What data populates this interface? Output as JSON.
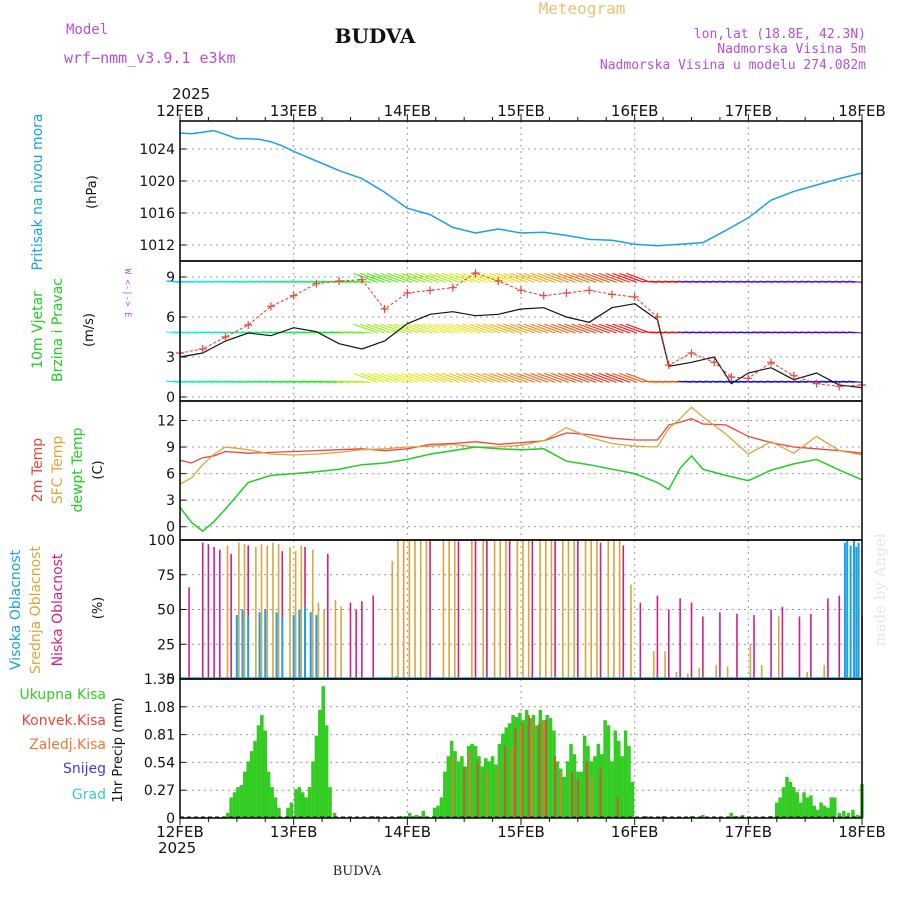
{
  "header": {
    "model_label": "Model",
    "model_name": "wrf−nmm_v3.9.1  e3km",
    "station": "BUDVA",
    "chart_title": "Meteogram",
    "coords": "lon,lat (18.8E, 42.3N)",
    "elevation": "Nadmorska Visina 5m",
    "model_elevation": "Nadmorska Visina u modelu 274.082m",
    "year_top": "2025",
    "year_bottom": "2025",
    "footer_station": "BUDVA",
    "watermark": "made by Angel"
  },
  "colors": {
    "pressure": "#1aa0e6",
    "temp2m": "#e8453c",
    "sfc_temp": "#dba53a",
    "dewpt": "#22cc22",
    "high_cloud": "#1aa0e6",
    "mid_cloud": "#dba53a",
    "low_cloud": "#cc1f8a",
    "wind_label": "#22cc22",
    "model_text": "#b44fd6",
    "meteogram_text": "#e8c274",
    "precip_total": "#33cc22",
    "precip_conv": "#e8453c",
    "precip_ice": "#ee7733",
    "precip_snow": "#3c3cdd",
    "precip_graupel": "#33cccc"
  },
  "chart_data": [
    {
      "type": "line",
      "id": "pressure",
      "ylabel_left": "Pritisak na nivou mora",
      "unit": "(hPa)",
      "ylim": [
        1010,
        1027.5
      ],
      "yticks": [
        "1012",
        "1016",
        "1020",
        "1024"
      ],
      "x_days": [
        0,
        0.1,
        0.2,
        0.3,
        0.4,
        0.5,
        0.6,
        0.7,
        0.8,
        0.9,
        1,
        1.2,
        1.4,
        1.6,
        1.8,
        2,
        2.2,
        2.4,
        2.6,
        2.8,
        3,
        3.2,
        3.4,
        3.6,
        3.8,
        4,
        4.2,
        4.4,
        4.6,
        4.8,
        5,
        5.2,
        5.4,
        5.6,
        5.8,
        6
      ],
      "values": [
        1026,
        1025.9,
        1026.1,
        1026.3,
        1025.8,
        1025.3,
        1025.3,
        1025.2,
        1024.9,
        1024.4,
        1023.7,
        1022.5,
        1021.3,
        1020.3,
        1018.6,
        1016.6,
        1015.8,
        1014.2,
        1013.5,
        1014.0,
        1013.5,
        1013.6,
        1013.2,
        1012.7,
        1012.6,
        1012.1,
        1011.9,
        1012.1,
        1012.3,
        1013.8,
        1015.4,
        1017.6,
        1018.7,
        1019.5,
        1020.3,
        1021.0
      ]
    },
    {
      "type": "line",
      "id": "wind",
      "ylabel_left": "10m Vjetar",
      "ylabel_left2": "Brzina i Pravac",
      "unit": "(m/s)",
      "compass_note": "W <-|-> E",
      "ylim": [
        -0.3,
        10.2
      ],
      "yticks": [
        "0",
        "3",
        "6",
        "9"
      ],
      "speed_x_days": [
        0,
        0.2,
        0.4,
        0.6,
        0.8,
        1,
        1.2,
        1.4,
        1.6,
        1.8,
        2,
        2.2,
        2.4,
        2.6,
        2.8,
        3,
        3.2,
        3.4,
        3.6,
        3.8,
        4,
        4.2,
        4.3,
        4.5,
        4.7,
        4.85,
        5,
        5.2,
        5.4,
        5.6,
        5.8,
        6
      ],
      "speed_values": [
        3.0,
        3.3,
        4.2,
        4.8,
        4.6,
        5.2,
        4.9,
        4.0,
        3.6,
        4.2,
        5.5,
        6.2,
        6.4,
        6.1,
        6.2,
        6.6,
        6.7,
        6.0,
        5.6,
        6.7,
        7.0,
        5.8,
        2.3,
        2.6,
        3.0,
        1.0,
        1.8,
        2.2,
        1.3,
        1.8,
        0.9,
        0.7
      ],
      "gust_x_days": [
        0,
        0.2,
        0.4,
        0.6,
        0.8,
        1,
        1.2,
        1.4,
        1.6,
        1.8,
        2,
        2.2,
        2.4,
        2.6,
        2.8,
        3,
        3.2,
        3.4,
        3.6,
        3.8,
        4,
        4.2,
        4.3,
        4.5,
        4.7,
        4.85,
        5,
        5.2,
        5.4,
        5.6,
        5.8,
        6
      ],
      "gust_values": [
        3.3,
        3.6,
        4.5,
        5.4,
        6.8,
        7.6,
        8.5,
        8.7,
        8.8,
        6.6,
        7.8,
        8.0,
        8.2,
        9.3,
        8.7,
        8.0,
        7.6,
        7.8,
        8.0,
        7.7,
        7.5,
        6.0,
        2.4,
        3.3,
        2.6,
        1.5,
        1.4,
        2.6,
        1.6,
        1.0,
        0.8,
        0.9
      ]
    },
    {
      "type": "line",
      "id": "temperature",
      "ylabel_left": "2m Temp",
      "ylabel_left2": "SFC Temp",
      "ylabel_left3": "dewpt Temp",
      "unit": "(C)",
      "ylim": [
        -1.5,
        14.2
      ],
      "yticks": [
        "0",
        "3",
        "6",
        "9",
        "12"
      ],
      "x_days": [
        0,
        0.1,
        0.2,
        0.3,
        0.4,
        0.6,
        0.8,
        1,
        1.2,
        1.4,
        1.6,
        1.8,
        2,
        2.2,
        2.4,
        2.6,
        2.8,
        3,
        3.2,
        3.4,
        3.6,
        3.8,
        4,
        4.2,
        4.3,
        4.4,
        4.5,
        4.6,
        4.8,
        5,
        5.2,
        5.4,
        5.6,
        5.8,
        6
      ],
      "t2m": [
        7.5,
        7.2,
        7.8,
        8.0,
        8.5,
        8.3,
        8.4,
        8.5,
        8.6,
        8.7,
        8.8,
        8.6,
        8.8,
        9.3,
        9.4,
        9.6,
        9.3,
        9.5,
        9.7,
        10.6,
        10.4,
        10.0,
        9.8,
        9.8,
        11.5,
        11.8,
        12.2,
        11.6,
        11.5,
        10.2,
        9.5,
        9.0,
        8.8,
        8.6,
        8.3
      ],
      "sfc": [
        4.8,
        5.5,
        7.0,
        8.2,
        9.0,
        8.7,
        8.2,
        8.1,
        8.2,
        8.4,
        8.7,
        8.8,
        9.0,
        9.1,
        9.3,
        9.0,
        9.0,
        9.2,
        9.7,
        11.2,
        10.1,
        9.4,
        9.1,
        9.0,
        11.1,
        12.2,
        13.5,
        12.4,
        10.5,
        8.2,
        9.6,
        8.3,
        10.2,
        8.6,
        8.1
      ],
      "dewpt": [
        2.2,
        0.5,
        -0.5,
        0.6,
        2.0,
        5.0,
        5.8,
        6.0,
        6.2,
        6.5,
        7.0,
        7.2,
        7.6,
        8.2,
        8.6,
        9.0,
        8.8,
        8.7,
        8.8,
        7.4,
        7.0,
        6.5,
        6.0,
        5.0,
        4.2,
        6.6,
        8.0,
        6.5,
        5.8,
        5.2,
        6.4,
        7.1,
        7.6,
        6.4,
        5.3
      ]
    },
    {
      "type": "bar",
      "id": "clouds",
      "ylabel_left": "Visoka Oblacnost",
      "ylabel_left2": "Srednja Oblacnost",
      "ylabel_left3": "Niska Oblacnost",
      "unit": "(%)",
      "ylim": [
        0,
        100
      ],
      "yticks": [
        "0",
        "25",
        "50",
        "75",
        "100"
      ],
      "series": [
        {
          "name": "Niska Oblacnost",
          "x_days": [
            0.08,
            0.2,
            0.25,
            0.3,
            0.35,
            0.45,
            0.6,
            0.9,
            1.1,
            1.3,
            1.5,
            1.55,
            1.6,
            1.7,
            2.2,
            2.45,
            2.6,
            2.7,
            2.9,
            3.1,
            3.3,
            3.5,
            3.7,
            3.9,
            4.05,
            4.2,
            4.3,
            4.4,
            4.5,
            4.6,
            4.75,
            4.9,
            5.05,
            5.2,
            5.3,
            5.45,
            5.55,
            5.7,
            5.8,
            5.9,
            5.95,
            6.0
          ],
          "values": [
            66,
            98,
            97,
            95,
            93,
            90,
            96,
            92,
            95,
            90,
            55,
            50,
            56,
            60,
            100,
            99,
            100,
            100,
            100,
            100,
            100,
            100,
            98,
            96,
            55,
            60,
            50,
            58,
            55,
            45,
            48,
            47,
            46,
            50,
            52,
            45,
            47,
            58,
            60,
            46,
            48,
            45
          ]
        },
        {
          "name": "Srednja Oblacnost",
          "x_days": [
            0.4,
            0.5,
            0.55,
            0.65,
            0.7,
            0.75,
            0.8,
            0.85,
            0.95,
            1.0,
            1.05,
            1.15,
            1.2,
            1.25,
            1.35,
            1.4,
            1.85,
            1.9,
            1.95,
            2.0,
            2.05,
            2.1,
            2.15,
            2.3,
            2.35,
            2.4,
            2.55,
            2.65,
            2.75,
            2.8,
            2.85,
            2.95,
            3.0,
            3.05,
            3.15,
            3.2,
            3.25,
            3.35,
            3.4,
            3.45,
            3.55,
            3.6,
            3.65,
            3.75,
            3.8,
            3.85,
            3.95,
            4.15,
            4.25,
            4.35,
            4.45,
            4.55,
            4.7,
            4.8,
            5.0,
            5.1,
            5.25,
            5.5,
            5.65
          ],
          "values": [
            96,
            98,
            97,
            95,
            97,
            96,
            98,
            97,
            95,
            92,
            96,
            93,
            55,
            50,
            57,
            52,
            85,
            100,
            100,
            100,
            100,
            100,
            100,
            100,
            100,
            100,
            100,
            100,
            100,
            100,
            100,
            100,
            100,
            100,
            100,
            100,
            100,
            100,
            100,
            100,
            100,
            100,
            100,
            100,
            100,
            100,
            68,
            20,
            20,
            5,
            4,
            8,
            10,
            9,
            25,
            10,
            45,
            5,
            10
          ]
        },
        {
          "name": "Visoka Oblacnost",
          "x_days": [
            0.5,
            0.55,
            0.6,
            0.7,
            0.75,
            0.85,
            0.9,
            1.0,
            1.05,
            1.1,
            1.15,
            1.2,
            1.9,
            2.5,
            2.9,
            3.1,
            4.2,
            5.85,
            5.87,
            5.9,
            5.93,
            5.95,
            5.97
          ],
          "values": [
            46,
            50,
            45,
            48,
            50,
            48,
            45,
            46,
            50,
            52,
            48,
            46,
            2,
            1,
            1,
            1,
            2,
            98,
            100,
            96,
            100,
            95,
            98
          ]
        }
      ]
    },
    {
      "type": "bar",
      "id": "precip",
      "ylabel_left": "1hr Precip (mm)",
      "legend": [
        "Ukupna Kisa",
        "Konvek.Kisa",
        "Zaledj.Kisa",
        "Snijeg",
        "Grad"
      ],
      "ylim": [
        0,
        1.35
      ],
      "yticks": [
        "0",
        "0.27",
        "0.54",
        "0.81",
        "1.08",
        "1.35"
      ],
      "series": [
        {
          "name": "Ukupna Kisa",
          "x_days": [
            0.42,
            0.45,
            0.48,
            0.51,
            0.54,
            0.57,
            0.6,
            0.63,
            0.66,
            0.69,
            0.72,
            0.75,
            0.78,
            0.81,
            0.84,
            0.87,
            0.95,
            0.98,
            1.02,
            1.05,
            1.08,
            1.11,
            1.14,
            1.17,
            1.2,
            1.23,
            1.26,
            1.29,
            1.32,
            1.36,
            1.7,
            1.95,
            2.02,
            2.08,
            2.14,
            2.24,
            2.27,
            2.3,
            2.33,
            2.36,
            2.39,
            2.42,
            2.45,
            2.48,
            2.51,
            2.54,
            2.57,
            2.6,
            2.63,
            2.66,
            2.69,
            2.72,
            2.75,
            2.78,
            2.81,
            2.84,
            2.87,
            2.9,
            2.93,
            2.96,
            2.99,
            3.02,
            3.05,
            3.08,
            3.11,
            3.14,
            3.17,
            3.2,
            3.23,
            3.26,
            3.29,
            3.32,
            3.35,
            3.38,
            3.41,
            3.44,
            3.47,
            3.5,
            3.53,
            3.56,
            3.59,
            3.62,
            3.65,
            3.68,
            3.71,
            3.74,
            3.77,
            3.8,
            3.83,
            3.86,
            3.89,
            3.92,
            3.95,
            3.98,
            4.1,
            4.25,
            4.5,
            4.6,
            4.85,
            4.9,
            4.95,
            5.2,
            5.25,
            5.28,
            5.31,
            5.34,
            5.37,
            5.4,
            5.43,
            5.46,
            5.49,
            5.52,
            5.55,
            5.58,
            5.61,
            5.64,
            5.67,
            5.7,
            5.73,
            5.76,
            5.8,
            5.84,
            5.88,
            5.92,
            5.96,
            6.0
          ],
          "values": [
            0.05,
            0.2,
            0.25,
            0.3,
            0.32,
            0.45,
            0.55,
            0.65,
            0.75,
            0.9,
            1.0,
            0.85,
            0.45,
            0.3,
            0.2,
            0.1,
            0.1,
            0.15,
            0.28,
            0.3,
            0.25,
            0.2,
            0.3,
            0.55,
            0.8,
            1.05,
            1.28,
            0.9,
            0.3,
            0.05,
            0.02,
            0.02,
            0.05,
            0.03,
            0.07,
            0.1,
            0.12,
            0.2,
            0.45,
            0.6,
            0.75,
            0.65,
            0.55,
            0.6,
            0.5,
            0.7,
            0.72,
            0.7,
            0.6,
            0.5,
            0.58,
            0.55,
            0.6,
            0.52,
            0.72,
            0.82,
            0.88,
            0.92,
            1.0,
            0.98,
            1.02,
            0.95,
            1.05,
            0.97,
            1.0,
            0.9,
            1.05,
            0.95,
            1.0,
            0.97,
            0.85,
            0.55,
            0.48,
            0.4,
            0.55,
            0.72,
            0.62,
            0.45,
            0.45,
            0.8,
            0.7,
            0.55,
            0.6,
            0.72,
            0.62,
            0.95,
            0.9,
            0.55,
            0.85,
            0.75,
            0.6,
            0.85,
            0.7,
            0.35,
            0.02,
            0.02,
            0.02,
            0.03,
            0.05,
            0.02,
            0.03,
            0.02,
            0.15,
            0.2,
            0.3,
            0.4,
            0.35,
            0.3,
            0.25,
            0.15,
            0.25,
            0.2,
            0.22,
            0.12,
            0.08,
            0.15,
            0.12,
            0.1,
            0.2,
            0.2,
            0.05,
            0.07,
            0.05,
            0.08,
            0.03,
            0.33
          ]
        },
        {
          "name": "Konvek.Kisa",
          "x_days": [
            2.5,
            2.62,
            2.86,
            2.95,
            3.01,
            3.07,
            3.16,
            3.22,
            3.3,
            3.45,
            3.5,
            3.58,
            3.7,
            3.85
          ],
          "values": [
            0.5,
            0.55,
            0.7,
            0.88,
            0.92,
            1.0,
            0.92,
            0.95,
            0.6,
            0.45,
            0.38,
            0.55,
            0.48,
            0.2
          ]
        },
        {
          "name": "Zaledj.Kisa",
          "x_days": [
            2.4,
            2.55,
            2.7,
            2.8,
            2.92,
            3.0,
            3.1,
            3.2,
            3.35,
            3.62
          ],
          "values": [
            0.6,
            0.65,
            0.45,
            0.5,
            0.7,
            0.9,
            0.95,
            0.95,
            0.45,
            0.4
          ]
        }
      ]
    }
  ],
  "time_axis": {
    "tick_labels": [
      "12FEB",
      "13FEB",
      "14FEB",
      "15FEB",
      "16FEB",
      "17FEB",
      "18FEB"
    ]
  }
}
